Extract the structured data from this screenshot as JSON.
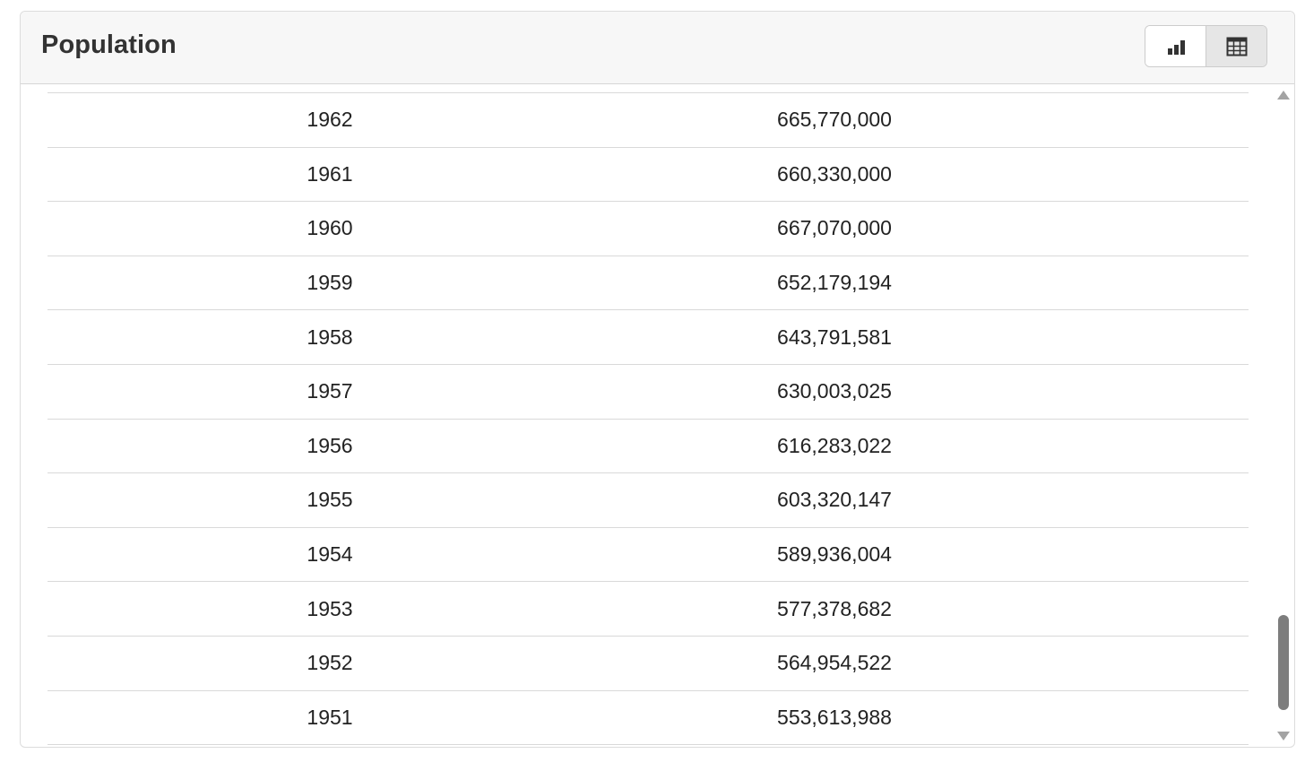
{
  "panel": {
    "title": "Population"
  },
  "view_toggle": {
    "chart_icon": "bar-chart-icon",
    "table_icon": "table-icon",
    "active": "table"
  },
  "table": {
    "rows": [
      {
        "year": "1962",
        "value": "665,770,000"
      },
      {
        "year": "1961",
        "value": "660,330,000"
      },
      {
        "year": "1960",
        "value": "667,070,000"
      },
      {
        "year": "1959",
        "value": "652,179,194"
      },
      {
        "year": "1958",
        "value": "643,791,581"
      },
      {
        "year": "1957",
        "value": "630,003,025"
      },
      {
        "year": "1956",
        "value": "616,283,022"
      },
      {
        "year": "1955",
        "value": "603,320,147"
      },
      {
        "year": "1954",
        "value": "589,936,004"
      },
      {
        "year": "1953",
        "value": "577,378,682"
      },
      {
        "year": "1952",
        "value": "564,954,522"
      },
      {
        "year": "1951",
        "value": "553,613,988"
      }
    ]
  },
  "colors": {
    "header_bg": "#f7f7f7",
    "active_toggle_bg": "#e6e6e6",
    "scroll_thumb": "#7d7d7d"
  }
}
